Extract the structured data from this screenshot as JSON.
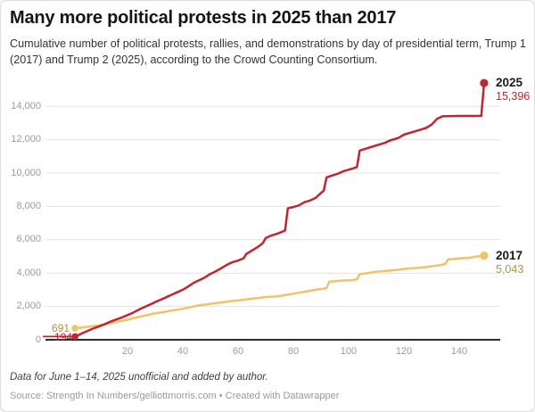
{
  "header": {
    "title": "Many more political protests in 2025 than 2017",
    "subtitle": "Cumulative number of political protests, rallies, and demonstrations by day of presidential term, Trump 1 (2017) and Trump 2 (2025), according to the Crowd Counting Consortium."
  },
  "annotations": {
    "start_2017_value": "691",
    "start_2025_value": "194",
    "end_2025_name": "2025",
    "end_2025_value": "15,396",
    "end_2017_name": "2017",
    "end_2017_value": "5,043"
  },
  "footer": {
    "note": "Data for June 1–14, 2025 unofficial and added by author.",
    "source": "Source: Strength In Numbers/gelliottmorris.com • Created with Datawrapper"
  },
  "colors": {
    "red": "#c0262d",
    "gold": "#f0c269",
    "gold_text": "#bb9133",
    "grid": "#e3e3e3",
    "axis": "#2b2b2b",
    "tick_text": "#9b9b9b"
  },
  "chart_data": {
    "type": "line",
    "title": "Many more political protests in 2025 than 2017",
    "subtitle": "Cumulative number of political protests, rallies, and demonstrations by day of presidential term, Trump 1 (2017) and Trump 2 (2025), according to the Crowd Counting Consortium",
    "xlabel": "",
    "ylabel": "",
    "grid": true,
    "legend_position": "end-of-line labels",
    "xlim": [
      0,
      155
    ],
    "ylim": [
      0,
      15500
    ],
    "x_ticks": [
      20,
      40,
      60,
      80,
      100,
      120,
      140
    ],
    "y_ticks": [
      0,
      2000,
      4000,
      6000,
      8000,
      10000,
      12000,
      14000
    ],
    "series": [
      {
        "name": "2025",
        "color": "#c0262d",
        "start_value": 194,
        "end_value": 15396,
        "points": [
          [
            1,
            194
          ],
          [
            2,
            260
          ],
          [
            4,
            420
          ],
          [
            6,
            560
          ],
          [
            8,
            700
          ],
          [
            10,
            820
          ],
          [
            12,
            950
          ],
          [
            14,
            1100
          ],
          [
            16,
            1220
          ],
          [
            18,
            1340
          ],
          [
            20,
            1480
          ],
          [
            22,
            1620
          ],
          [
            24,
            1800
          ],
          [
            26,
            1950
          ],
          [
            28,
            2100
          ],
          [
            30,
            2260
          ],
          [
            32,
            2400
          ],
          [
            34,
            2550
          ],
          [
            36,
            2700
          ],
          [
            38,
            2850
          ],
          [
            40,
            3000
          ],
          [
            42,
            3200
          ],
          [
            44,
            3420
          ],
          [
            46,
            3580
          ],
          [
            48,
            3740
          ],
          [
            50,
            3950
          ],
          [
            52,
            4110
          ],
          [
            54,
            4300
          ],
          [
            56,
            4500
          ],
          [
            58,
            4660
          ],
          [
            60,
            4750
          ],
          [
            62,
            4880
          ],
          [
            63,
            5150
          ],
          [
            65,
            5350
          ],
          [
            67,
            5550
          ],
          [
            69,
            5800
          ],
          [
            70,
            6100
          ],
          [
            72,
            6250
          ],
          [
            74,
            6350
          ],
          [
            76,
            6480
          ],
          [
            77,
            6550
          ],
          [
            78,
            7880
          ],
          [
            80,
            7960
          ],
          [
            82,
            8060
          ],
          [
            84,
            8250
          ],
          [
            86,
            8350
          ],
          [
            88,
            8500
          ],
          [
            90,
            8800
          ],
          [
            91,
            8940
          ],
          [
            92,
            9740
          ],
          [
            94,
            9850
          ],
          [
            96,
            9950
          ],
          [
            98,
            10100
          ],
          [
            100,
            10200
          ],
          [
            102,
            10300
          ],
          [
            103,
            10360
          ],
          [
            104,
            11350
          ],
          [
            106,
            11450
          ],
          [
            108,
            11550
          ],
          [
            110,
            11650
          ],
          [
            113,
            11800
          ],
          [
            115,
            11950
          ],
          [
            118,
            12100
          ],
          [
            120,
            12300
          ],
          [
            123,
            12450
          ],
          [
            126,
            12600
          ],
          [
            128,
            12700
          ],
          [
            130,
            12900
          ],
          [
            132,
            13250
          ],
          [
            134,
            13400
          ],
          [
            140,
            13420
          ],
          [
            148,
            13430
          ],
          [
            149,
            15396
          ]
        ]
      },
      {
        "name": "2017",
        "color": "#f0c269",
        "start_value": 691,
        "end_value": 5043,
        "points": [
          [
            1,
            691
          ],
          [
            3,
            720
          ],
          [
            5,
            760
          ],
          [
            7,
            800
          ],
          [
            9,
            850
          ],
          [
            11,
            900
          ],
          [
            13,
            960
          ],
          [
            15,
            1030
          ],
          [
            17,
            1100
          ],
          [
            19,
            1170
          ],
          [
            21,
            1240
          ],
          [
            23,
            1330
          ],
          [
            25,
            1400
          ],
          [
            27,
            1470
          ],
          [
            29,
            1560
          ],
          [
            31,
            1610
          ],
          [
            33,
            1660
          ],
          [
            35,
            1720
          ],
          [
            37,
            1780
          ],
          [
            39,
            1830
          ],
          [
            41,
            1890
          ],
          [
            43,
            1960
          ],
          [
            45,
            2040
          ],
          [
            47,
            2090
          ],
          [
            49,
            2130
          ],
          [
            51,
            2180
          ],
          [
            53,
            2220
          ],
          [
            55,
            2260
          ],
          [
            57,
            2310
          ],
          [
            59,
            2340
          ],
          [
            61,
            2380
          ],
          [
            63,
            2420
          ],
          [
            65,
            2460
          ],
          [
            67,
            2500
          ],
          [
            69,
            2540
          ],
          [
            71,
            2570
          ],
          [
            73,
            2590
          ],
          [
            75,
            2620
          ],
          [
            77,
            2680
          ],
          [
            79,
            2730
          ],
          [
            81,
            2790
          ],
          [
            83,
            2850
          ],
          [
            85,
            2910
          ],
          [
            87,
            2970
          ],
          [
            89,
            3020
          ],
          [
            91,
            3070
          ],
          [
            92,
            3100
          ],
          [
            93,
            3480
          ],
          [
            95,
            3510
          ],
          [
            97,
            3540
          ],
          [
            99,
            3560
          ],
          [
            101,
            3580
          ],
          [
            103,
            3620
          ],
          [
            104,
            3930
          ],
          [
            106,
            3980
          ],
          [
            108,
            4030
          ],
          [
            110,
            4080
          ],
          [
            112,
            4110
          ],
          [
            115,
            4150
          ],
          [
            118,
            4200
          ],
          [
            121,
            4260
          ],
          [
            124,
            4300
          ],
          [
            127,
            4350
          ],
          [
            130,
            4400
          ],
          [
            133,
            4470
          ],
          [
            135,
            4550
          ],
          [
            136,
            4820
          ],
          [
            139,
            4860
          ],
          [
            142,
            4900
          ],
          [
            144,
            4920
          ],
          [
            146,
            4990
          ],
          [
            148,
            5010
          ],
          [
            149,
            5043
          ]
        ]
      }
    ]
  }
}
